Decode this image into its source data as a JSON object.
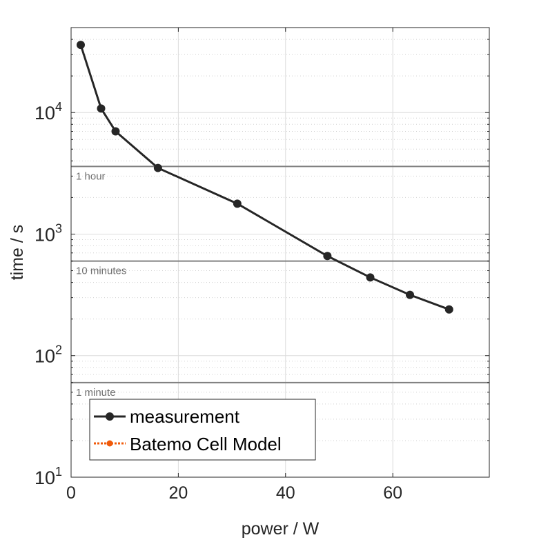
{
  "chart_data": {
    "type": "line",
    "title": "",
    "xlabel": "power / W",
    "ylabel": "time / s",
    "xlim": [
      0,
      78
    ],
    "ylim": [
      10,
      50000
    ],
    "yscale": "log",
    "grid": true,
    "xticks": [
      0,
      20,
      40,
      60
    ],
    "xtick_labels": [
      "0",
      "20",
      "40",
      "60"
    ],
    "yticks": [
      10,
      100,
      1000,
      10000
    ],
    "ytick_exponents": [
      "1",
      "2",
      "3",
      "4"
    ],
    "ytick_base": "10",
    "series": [
      {
        "name": "measurement",
        "color": "#262626",
        "x": [
          1.8,
          5.6,
          8.3,
          16.2,
          31.0,
          47.8,
          55.8,
          63.2,
          70.5
        ],
        "y": [
          36000,
          10800,
          7000,
          3500,
          1780,
          660,
          440,
          316,
          240
        ]
      },
      {
        "name": "Batemo Cell Model",
        "color": "#f05a0a",
        "x": [],
        "y": []
      }
    ],
    "reference_lines": [
      {
        "y": 3600,
        "label": "1 hour"
      },
      {
        "y": 600,
        "label": "10 minutes"
      },
      {
        "y": 60,
        "label": "1 minute"
      }
    ],
    "legend": {
      "placement": "bottom-left",
      "entries": [
        "measurement",
        "Batemo Cell Model"
      ]
    }
  }
}
